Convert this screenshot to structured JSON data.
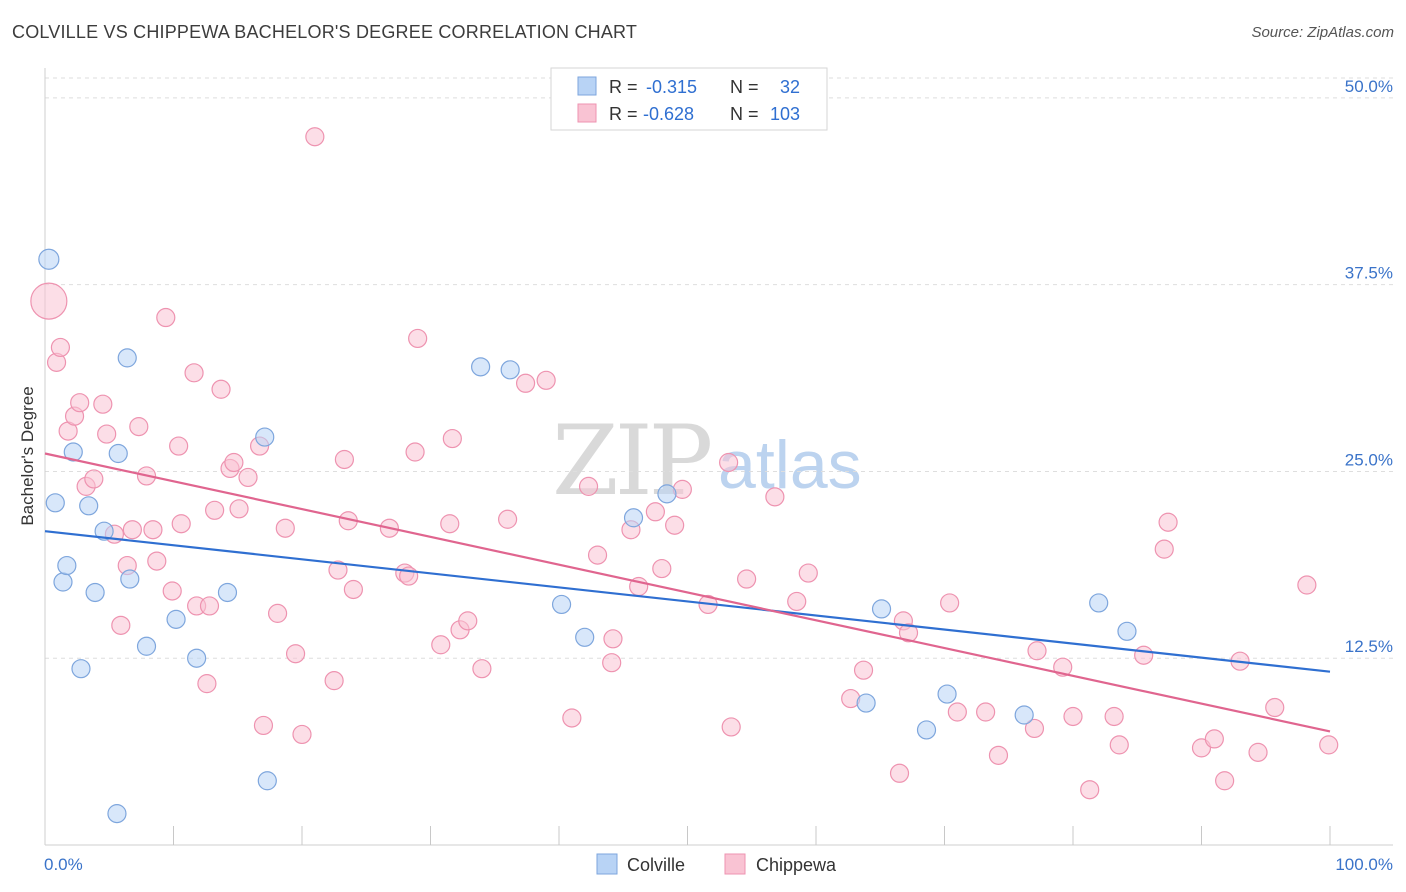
{
  "title": "COLVILLE VS CHIPPEWA BACHELOR'S DEGREE CORRELATION CHART",
  "source": "Source: ZipAtlas.com",
  "watermark": {
    "zip": "ZIP",
    "atlas": "atlas"
  },
  "colors": {
    "colville_fill": "#b8d3f5",
    "colville_stroke": "#7ea6dd",
    "colville_line": "#2f6fd1",
    "chippewa_fill": "#f9c3d3",
    "chippewa_stroke": "#ee93b0",
    "chippewa_line": "#e0658f",
    "grid": "#dedede",
    "tick_text": "#3a73c9"
  },
  "legend": {
    "rows": [
      {
        "r_label": "R =",
        "r_value": "-0.315",
        "n_label": "N =",
        "n_value": "32"
      },
      {
        "r_label": "R =",
        "r_value": "-0.628",
        "n_label": "N =",
        "n_value": "103"
      }
    ]
  },
  "bottom_legend": [
    "Colville",
    "Chippewa"
  ],
  "chart_data": {
    "type": "scatter",
    "title": "COLVILLE VS CHIPPEWA BACHELOR'S DEGREE CORRELATION CHART",
    "xlabel": "",
    "ylabel": "Bachelor's Degree",
    "xlim": [
      0,
      100
    ],
    "ylim": [
      0,
      52
    ],
    "x_tick_labels": [
      "0.0%",
      "100.0%"
    ],
    "y_ticks": [
      12.5,
      25.0,
      37.5,
      50.0
    ],
    "y_tick_labels": [
      "12.5%",
      "25.0%",
      "37.5%",
      "50.0%"
    ],
    "legend_position": "top-center",
    "series": [
      {
        "name": "Colville",
        "R": -0.315,
        "N": 32,
        "trend": {
          "x": [
            0,
            100
          ],
          "y": [
            21.0,
            11.6
          ]
        },
        "points": [
          [
            0.3,
            39.2,
            10
          ],
          [
            0.8,
            22.9,
            9
          ],
          [
            1.4,
            17.6,
            9
          ],
          [
            1.7,
            18.7,
            9
          ],
          [
            2.2,
            26.3,
            9
          ],
          [
            2.8,
            11.8,
            9
          ],
          [
            3.4,
            22.7,
            9
          ],
          [
            3.9,
            16.9,
            9
          ],
          [
            4.6,
            21.0,
            9
          ],
          [
            5.7,
            26.2,
            9
          ],
          [
            5.6,
            2.1,
            9
          ],
          [
            6.4,
            32.6,
            9
          ],
          [
            6.6,
            17.8,
            9
          ],
          [
            7.9,
            13.3,
            9
          ],
          [
            10.2,
            15.1,
            9
          ],
          [
            11.8,
            12.5,
            9
          ],
          [
            14.2,
            16.9,
            9
          ],
          [
            17.1,
            27.3,
            9
          ],
          [
            17.3,
            4.3,
            9
          ],
          [
            33.9,
            32.0,
            9
          ],
          [
            36.2,
            31.8,
            9
          ],
          [
            40.2,
            16.1,
            9
          ],
          [
            42.0,
            13.9,
            9
          ],
          [
            45.8,
            21.9,
            9
          ],
          [
            48.4,
            23.5,
            9
          ],
          [
            63.9,
            9.5,
            9
          ],
          [
            65.1,
            15.8,
            9
          ],
          [
            68.6,
            7.7,
            9
          ],
          [
            70.2,
            10.1,
            9
          ],
          [
            76.2,
            8.7,
            9
          ],
          [
            82.0,
            16.2,
            9
          ],
          [
            84.2,
            14.3,
            9
          ]
        ]
      },
      {
        "name": "Chippewa",
        "R": -0.628,
        "N": 103,
        "trend": {
          "x": [
            0,
            100
          ],
          "y": [
            26.2,
            7.6
          ]
        },
        "points": [
          [
            0.3,
            36.4,
            18
          ],
          [
            0.9,
            32.3,
            9
          ],
          [
            1.2,
            33.3,
            9
          ],
          [
            1.8,
            27.7,
            9
          ],
          [
            2.3,
            28.7,
            9
          ],
          [
            2.7,
            29.6,
            9
          ],
          [
            3.2,
            24.0,
            9
          ],
          [
            3.8,
            24.5,
            9
          ],
          [
            4.5,
            29.5,
            9
          ],
          [
            4.8,
            27.5,
            9
          ],
          [
            5.4,
            20.8,
            9
          ],
          [
            5.9,
            14.7,
            9
          ],
          [
            6.4,
            18.7,
            9
          ],
          [
            6.8,
            21.1,
            9
          ],
          [
            7.3,
            28.0,
            9
          ],
          [
            7.9,
            24.7,
            9
          ],
          [
            8.4,
            21.1,
            9
          ],
          [
            8.7,
            19.0,
            9
          ],
          [
            9.4,
            35.3,
            9
          ],
          [
            9.9,
            17.0,
            9
          ],
          [
            10.4,
            26.7,
            9
          ],
          [
            10.6,
            21.5,
            9
          ],
          [
            11.6,
            31.6,
            9
          ],
          [
            11.8,
            16.0,
            9
          ],
          [
            12.6,
            10.8,
            9
          ],
          [
            12.8,
            16.0,
            9
          ],
          [
            13.2,
            22.4,
            9
          ],
          [
            13.7,
            30.5,
            9
          ],
          [
            14.4,
            25.2,
            9
          ],
          [
            14.7,
            25.6,
            9
          ],
          [
            15.1,
            22.5,
            9
          ],
          [
            15.8,
            24.6,
            9
          ],
          [
            16.7,
            26.7,
            9
          ],
          [
            17.0,
            8.0,
            9
          ],
          [
            18.1,
            15.5,
            9
          ],
          [
            18.7,
            21.2,
            9
          ],
          [
            19.5,
            12.8,
            9
          ],
          [
            20.0,
            7.4,
            9
          ],
          [
            21.0,
            47.4,
            9
          ],
          [
            22.5,
            11.0,
            9
          ],
          [
            22.8,
            18.4,
            9
          ],
          [
            23.3,
            25.8,
            9
          ],
          [
            23.6,
            21.7,
            9
          ],
          [
            24.0,
            17.1,
            9
          ],
          [
            26.8,
            21.2,
            9
          ],
          [
            28.0,
            18.2,
            9
          ],
          [
            28.3,
            18.0,
            9
          ],
          [
            28.8,
            26.3,
            9
          ],
          [
            29.0,
            33.9,
            9
          ],
          [
            30.8,
            13.4,
            9
          ],
          [
            31.5,
            21.5,
            9
          ],
          [
            31.7,
            27.2,
            9
          ],
          [
            32.3,
            14.4,
            9
          ],
          [
            32.9,
            15.0,
            9
          ],
          [
            34.0,
            11.8,
            9
          ],
          [
            36.0,
            21.8,
            9
          ],
          [
            37.4,
            30.9,
            9
          ],
          [
            39.0,
            31.1,
            9
          ],
          [
            41.0,
            8.5,
            9
          ],
          [
            42.3,
            24.0,
            9
          ],
          [
            43.0,
            19.4,
            9
          ],
          [
            44.1,
            12.2,
            9
          ],
          [
            44.2,
            13.8,
            9
          ],
          [
            45.6,
            21.1,
            9
          ],
          [
            46.2,
            17.3,
            9
          ],
          [
            47.5,
            22.3,
            9
          ],
          [
            48.0,
            18.5,
            9
          ],
          [
            49.0,
            21.4,
            9
          ],
          [
            49.6,
            23.8,
            9
          ],
          [
            51.6,
            16.1,
            9
          ],
          [
            53.2,
            25.6,
            9
          ],
          [
            53.4,
            7.9,
            9
          ],
          [
            54.6,
            17.8,
            9
          ],
          [
            56.8,
            23.3,
            9
          ],
          [
            58.5,
            16.3,
            9
          ],
          [
            59.4,
            18.2,
            9
          ],
          [
            62.7,
            9.8,
            9
          ],
          [
            63.7,
            11.7,
            9
          ],
          [
            66.5,
            4.8,
            9
          ],
          [
            66.8,
            15.0,
            9
          ],
          [
            67.2,
            14.2,
            9
          ],
          [
            70.4,
            16.2,
            9
          ],
          [
            71.0,
            8.9,
            9
          ],
          [
            73.2,
            8.9,
            9
          ],
          [
            74.2,
            6.0,
            9
          ],
          [
            77.0,
            7.8,
            9
          ],
          [
            77.2,
            13.0,
            9
          ],
          [
            79.2,
            11.9,
            9
          ],
          [
            80.0,
            8.6,
            9
          ],
          [
            81.3,
            3.7,
            9
          ],
          [
            83.2,
            8.6,
            9
          ],
          [
            83.6,
            6.7,
            9
          ],
          [
            85.5,
            12.7,
            9
          ],
          [
            87.1,
            19.8,
            9
          ],
          [
            87.4,
            21.6,
            9
          ],
          [
            90.0,
            6.5,
            9
          ],
          [
            91.0,
            7.1,
            9
          ],
          [
            91.8,
            4.3,
            9
          ],
          [
            93.0,
            12.3,
            9
          ],
          [
            94.4,
            6.2,
            9
          ],
          [
            95.7,
            9.2,
            9
          ],
          [
            98.2,
            17.4,
            9
          ],
          [
            99.9,
            6.7,
            9
          ]
        ]
      }
    ]
  }
}
